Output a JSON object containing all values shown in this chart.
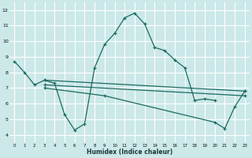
{
  "bg_color": "#cce8e8",
  "grid_color": "#aad0d0",
  "line_color": "#1a6b60",
  "xlabel": "Humidex (Indice chaleur)",
  "xlim": [
    -0.5,
    23.5
  ],
  "ylim": [
    3.5,
    12.5
  ],
  "xticks": [
    0,
    1,
    2,
    3,
    4,
    5,
    6,
    7,
    8,
    9,
    10,
    11,
    12,
    13,
    14,
    15,
    16,
    17,
    18,
    19,
    20,
    21,
    22,
    23
  ],
  "yticks": [
    4,
    5,
    6,
    7,
    8,
    9,
    10,
    11,
    12
  ],
  "series": [
    {
      "x": [
        0,
        1,
        2,
        3,
        4,
        5,
        6,
        7,
        8,
        9,
        10,
        11,
        12,
        13,
        14,
        15,
        16,
        17,
        18,
        19,
        20
      ],
      "y": [
        8.7,
        8.0,
        7.2,
        7.5,
        7.3,
        5.3,
        4.3,
        4.7,
        8.3,
        9.8,
        10.5,
        11.5,
        11.8,
        11.1,
        9.6,
        9.4,
        8.8,
        8.3,
        6.2,
        6.3,
        6.2
      ]
    },
    {
      "x": [
        3,
        23
      ],
      "y": [
        7.5,
        6.8
      ]
    },
    {
      "x": [
        3,
        23
      ],
      "y": [
        7.2,
        6.5
      ]
    },
    {
      "x": [
        3,
        9,
        20,
        21,
        22,
        23
      ],
      "y": [
        7.0,
        6.5,
        4.8,
        4.4,
        5.8,
        6.8
      ]
    }
  ]
}
